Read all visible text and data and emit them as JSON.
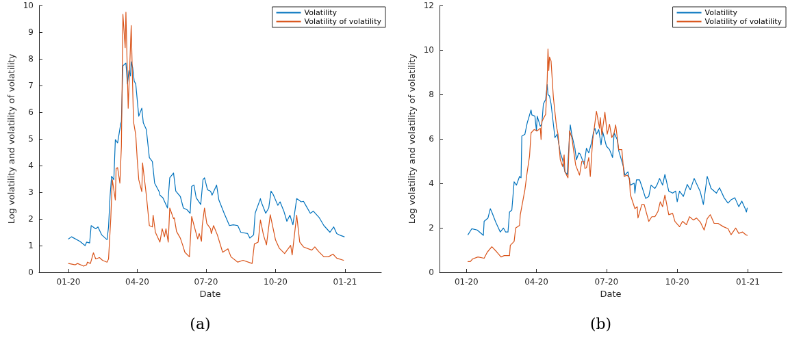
{
  "chart_data": [
    {
      "type": "line",
      "title": "(a)",
      "xlabel": "Date",
      "ylabel": "Log volatility and volatility of volatility",
      "xlim": [
        "2019-11-23",
        "2021-02-18"
      ],
      "ylim": [
        0,
        10
      ],
      "yticks": [
        0,
        1,
        2,
        3,
        4,
        5,
        6,
        7,
        8,
        9,
        10
      ],
      "xticks": [
        {
          "value": "2020-01-01",
          "label": "01-20"
        },
        {
          "value": "2020-04-01",
          "label": "04-20"
        },
        {
          "value": "2020-07-01",
          "label": "07-20"
        },
        {
          "value": "2020-10-01",
          "label": "10-20"
        },
        {
          "value": "2021-01-01",
          "label": "01-21"
        }
      ],
      "grid": false,
      "legend": "top right",
      "marker": "none",
      "line_style": "solid",
      "series": [
        {
          "name": "Volatility",
          "color": "#0072bd",
          "x": [
            "2020-01-01",
            "2020-01-05",
            "2020-01-16",
            "2020-01-23",
            "2020-01-25",
            "2020-01-29",
            "2020-01-31",
            "2020-02-06",
            "2020-02-09",
            "2020-02-14",
            "2020-02-21",
            "2020-02-23",
            "2020-02-25",
            "2020-02-27",
            "2020-03-01",
            "2020-03-03",
            "2020-03-06",
            "2020-03-10",
            "2020-03-11",
            "2020-03-13",
            "2020-03-17",
            "2020-03-19",
            "2020-03-21",
            "2020-03-23",
            "2020-03-24",
            "2020-03-26",
            "2020-03-28",
            "2020-03-30",
            "2020-04-03",
            "2020-04-07",
            "2020-04-09",
            "2020-04-13",
            "2020-04-17",
            "2020-04-21",
            "2020-04-24",
            "2020-04-30",
            "2020-05-01",
            "2020-05-05",
            "2020-05-07",
            "2020-05-11",
            "2020-05-14",
            "2020-05-19",
            "2020-05-22",
            "2020-05-28",
            "2020-06-01",
            "2020-06-06",
            "2020-06-10",
            "2020-06-12",
            "2020-06-15",
            "2020-06-18",
            "2020-06-24",
            "2020-06-27",
            "2020-06-29",
            "2020-07-03",
            "2020-07-07",
            "2020-07-09",
            "2020-07-15",
            "2020-07-18",
            "2020-07-25",
            "2020-08-01",
            "2020-08-06",
            "2020-08-12",
            "2020-08-16",
            "2020-08-25",
            "2020-08-28",
            "2020-09-02",
            "2020-09-04",
            "2020-09-11",
            "2020-09-12",
            "2020-09-18",
            "2020-09-22",
            "2020-09-25",
            "2020-09-28",
            "2020-10-04",
            "2020-10-07",
            "2020-10-12",
            "2020-10-16",
            "2020-10-20",
            "2020-10-24",
            "2020-10-29",
            "2020-11-04",
            "2020-11-07",
            "2020-11-10",
            "2020-11-16",
            "2020-11-20",
            "2020-11-28",
            "2020-12-04",
            "2020-12-12",
            "2020-12-17",
            "2020-12-21",
            "2020-12-26",
            "2020-12-31"
          ],
          "values": [
            1.25,
            1.33,
            1.16,
            1.0,
            1.13,
            1.1,
            1.75,
            1.63,
            1.7,
            1.4,
            1.22,
            1.7,
            2.84,
            3.6,
            3.47,
            4.97,
            4.85,
            5.55,
            5.65,
            7.74,
            7.84,
            7.06,
            7.56,
            7.36,
            7.89,
            7.66,
            7.16,
            7.06,
            5.85,
            6.15,
            5.6,
            5.35,
            4.3,
            4.15,
            3.34,
            3.02,
            2.89,
            2.79,
            2.66,
            2.41,
            3.54,
            3.72,
            3.04,
            2.84,
            2.41,
            2.34,
            2.21,
            3.22,
            3.27,
            2.79,
            2.54,
            3.47,
            3.54,
            3.09,
            3.04,
            2.89,
            3.27,
            2.71,
            2.21,
            1.75,
            1.78,
            1.75,
            1.5,
            1.45,
            1.28,
            1.4,
            2.21,
            2.76,
            2.64,
            2.21,
            2.41,
            3.04,
            2.91,
            2.51,
            2.64,
            2.29,
            1.91,
            2.14,
            1.78,
            2.76,
            2.64,
            2.66,
            2.51,
            2.21,
            2.29,
            2.04,
            1.75,
            1.5,
            1.7,
            1.45,
            1.38,
            1.33
          ]
        },
        {
          "name": "Volatility of volatility",
          "color": "#d95319",
          "x": [
            "2020-01-01",
            "2020-01-10",
            "2020-01-13",
            "2020-01-21",
            "2020-01-25",
            "2020-01-26",
            "2020-01-30",
            "2020-02-03",
            "2020-02-06",
            "2020-02-11",
            "2020-02-15",
            "2020-02-21",
            "2020-02-23",
            "2020-02-26",
            "2020-02-28",
            "2020-03-03",
            "2020-03-04",
            "2020-03-06",
            "2020-03-09",
            "2020-03-11",
            "2020-03-12",
            "2020-03-13",
            "2020-03-16",
            "2020-03-17",
            "2020-03-20",
            "2020-03-24",
            "2020-03-27",
            "2020-03-30",
            "2020-04-01",
            "2020-04-03",
            "2020-04-07",
            "2020-04-08",
            "2020-04-13",
            "2020-04-17",
            "2020-04-21",
            "2020-04-22",
            "2020-04-25",
            "2020-05-01",
            "2020-05-04",
            "2020-05-07",
            "2020-05-09",
            "2020-05-12",
            "2020-05-14",
            "2020-05-19",
            "2020-05-20",
            "2020-05-23",
            "2020-05-28",
            "2020-05-31",
            "2020-06-03",
            "2020-06-09",
            "2020-06-12",
            "2020-06-18",
            "2020-06-20",
            "2020-06-22",
            "2020-06-25",
            "2020-06-26",
            "2020-06-29",
            "2020-07-02",
            "2020-07-07",
            "2020-07-08",
            "2020-07-11",
            "2020-07-16",
            "2020-07-23",
            "2020-07-30",
            "2020-08-03",
            "2020-08-12",
            "2020-08-19",
            "2020-08-31",
            "2020-09-03",
            "2020-09-08",
            "2020-09-11",
            "2020-09-15",
            "2020-09-19",
            "2020-09-24",
            "2020-10-01",
            "2020-10-06",
            "2020-10-13",
            "2020-10-21",
            "2020-10-23",
            "2020-10-29",
            "2020-11-02",
            "2020-11-07",
            "2020-11-18",
            "2020-11-22",
            "2020-11-27",
            "2020-12-04",
            "2020-12-10",
            "2020-12-16",
            "2020-12-21",
            "2020-12-30"
          ],
          "values": [
            0.33,
            0.28,
            0.33,
            0.23,
            0.28,
            0.38,
            0.33,
            0.73,
            0.5,
            0.55,
            0.45,
            0.38,
            0.5,
            2.04,
            3.47,
            2.71,
            3.89,
            3.92,
            3.34,
            4.72,
            7.06,
            9.67,
            8.42,
            9.75,
            6.15,
            9.25,
            5.65,
            5.15,
            4.22,
            3.47,
            3.02,
            4.1,
            2.89,
            1.75,
            1.7,
            2.14,
            1.5,
            1.13,
            1.63,
            1.33,
            1.63,
            1.13,
            2.41,
            2.01,
            2.04,
            1.53,
            1.28,
            1.03,
            0.75,
            0.58,
            2.09,
            1.45,
            1.25,
            1.45,
            1.16,
            1.75,
            2.41,
            1.83,
            1.63,
            1.45,
            1.75,
            1.4,
            0.75,
            0.88,
            0.58,
            0.38,
            0.45,
            0.33,
            1.06,
            1.13,
            1.96,
            1.4,
            1.03,
            2.16,
            1.21,
            0.9,
            0.7,
            1.01,
            0.65,
            2.14,
            1.13,
            0.95,
            0.83,
            0.95,
            0.78,
            0.58,
            0.58,
            0.68,
            0.53,
            0.45
          ]
        }
      ]
    },
    {
      "type": "line",
      "title": "(b)",
      "xlabel": "Date",
      "ylabel": "Log volatility and volatility of volatility",
      "xlim": [
        "2019-11-27",
        "2021-02-14"
      ],
      "ylim": [
        0,
        12
      ],
      "yticks": [
        0,
        2,
        4,
        6,
        8,
        10,
        12
      ],
      "xticks": [
        {
          "value": "2020-01-01",
          "label": "01-20"
        },
        {
          "value": "2020-04-01",
          "label": "04-20"
        },
        {
          "value": "2020-07-01",
          "label": "07-20"
        },
        {
          "value": "2020-10-01",
          "label": "10-20"
        },
        {
          "value": "2021-01-01",
          "label": "01-21"
        }
      ],
      "grid": false,
      "legend": "top right",
      "marker": "none",
      "line_style": "solid",
      "series": [
        {
          "name": "Volatility",
          "color": "#0072bd",
          "x": [
            "2020-01-03",
            "2020-01-08",
            "2020-01-15",
            "2020-01-23",
            "2020-01-24",
            "2020-01-29",
            "2020-02-01",
            "2020-02-03",
            "2020-02-08",
            "2020-02-14",
            "2020-02-18",
            "2020-02-21",
            "2020-02-24",
            "2020-02-26",
            "2020-02-29",
            "2020-03-03",
            "2020-03-06",
            "2020-03-10",
            "2020-03-12",
            "2020-03-13",
            "2020-03-17",
            "2020-03-20",
            "2020-03-25",
            "2020-03-26",
            "2020-03-30",
            "2020-04-01",
            "2020-04-02",
            "2020-04-06",
            "2020-04-08",
            "2020-04-10",
            "2020-04-13",
            "2020-04-15",
            "2020-04-16",
            "2020-04-18",
            "2020-04-20",
            "2020-04-25",
            "2020-04-28",
            "2020-05-02",
            "2020-05-05",
            "2020-05-08",
            "2020-05-11",
            "2020-05-15",
            "2020-05-17",
            "2020-05-21",
            "2020-05-23",
            "2020-05-26",
            "2020-05-28",
            "2020-06-02",
            "2020-06-05",
            "2020-06-08",
            "2020-06-12",
            "2020-06-14",
            "2020-06-16",
            "2020-06-18",
            "2020-06-21",
            "2020-06-24",
            "2020-06-26",
            "2020-07-01",
            "2020-07-05",
            "2020-07-09",
            "2020-07-11",
            "2020-07-15",
            "2020-07-17",
            "2020-07-23",
            "2020-07-25",
            "2020-07-29",
            "2020-08-01",
            "2020-08-06",
            "2020-08-07",
            "2020-08-09",
            "2020-08-13",
            "2020-08-16",
            "2020-08-21",
            "2020-08-25",
            "2020-08-28",
            "2020-09-02",
            "2020-09-05",
            "2020-09-08",
            "2020-09-12",
            "2020-09-15",
            "2020-09-20",
            "2020-09-25",
            "2020-09-29",
            "2020-10-01",
            "2020-10-04",
            "2020-10-09",
            "2020-10-14",
            "2020-10-18",
            "2020-10-23",
            "2020-10-31",
            "2020-11-04",
            "2020-11-09",
            "2020-11-14",
            "2020-11-21",
            "2020-11-25",
            "2020-12-01",
            "2020-12-06",
            "2020-12-10",
            "2020-12-15",
            "2020-12-20",
            "2020-12-24",
            "2020-12-28",
            "2020-12-30",
            "2020-12-31"
          ],
          "values": [
            1.69,
            1.96,
            1.9,
            1.66,
            2.29,
            2.44,
            2.86,
            2.71,
            2.26,
            1.81,
            1.99,
            1.81,
            1.81,
            2.71,
            2.8,
            4.07,
            3.92,
            4.31,
            4.25,
            6.12,
            6.21,
            6.72,
            7.3,
            7.08,
            7.02,
            6.36,
            7.02,
            6.57,
            6.66,
            7.57,
            7.78,
            8.44,
            7.99,
            7.93,
            7.57,
            6.06,
            6.21,
            5.37,
            5.06,
            4.52,
            4.4,
            6.63,
            6.18,
            5.58,
            5.06,
            5.37,
            5.31,
            4.85,
            5.58,
            5.37,
            5.88,
            6.27,
            6.48,
            6.21,
            6.42,
            5.73,
            6.33,
            5.67,
            5.52,
            5.16,
            6.27,
            5.97,
            5.46,
            4.76,
            4.37,
            4.52,
            3.92,
            4.01,
            3.56,
            4.16,
            4.16,
            3.86,
            3.32,
            3.41,
            3.92,
            3.77,
            3.95,
            4.22,
            3.92,
            4.4,
            3.65,
            3.56,
            3.65,
            3.17,
            3.65,
            3.41,
            3.95,
            3.71,
            4.22,
            3.62,
            3.05,
            4.31,
            3.77,
            3.56,
            3.8,
            3.35,
            3.11,
            3.26,
            3.35,
            2.95,
            3.2,
            2.89,
            2.71,
            2.89
          ]
        },
        {
          "name": "Volatility of volatility",
          "color": "#d95319",
          "x": [
            "2020-01-03",
            "2020-01-06",
            "2020-01-09",
            "2020-01-16",
            "2020-01-24",
            "2020-01-28",
            "2020-02-03",
            "2020-02-09",
            "2020-02-15",
            "2020-02-19",
            "2020-02-22",
            "2020-02-26",
            "2020-02-27",
            "2020-03-03",
            "2020-03-05",
            "2020-03-10",
            "2020-03-11",
            "2020-03-17",
            "2020-03-20",
            "2020-03-23",
            "2020-03-25",
            "2020-03-29",
            "2020-04-02",
            "2020-04-06",
            "2020-04-07",
            "2020-04-08",
            "2020-04-13",
            "2020-04-15",
            "2020-04-16",
            "2020-04-17",
            "2020-04-18",
            "2020-04-20",
            "2020-04-23",
            "2020-04-27",
            "2020-04-29",
            "2020-05-02",
            "2020-05-05",
            "2020-05-07",
            "2020-05-08",
            "2020-05-12",
            "2020-05-14",
            "2020-05-17",
            "2020-05-22",
            "2020-05-27",
            "2020-05-30",
            "2020-06-02",
            "2020-06-03",
            "2020-06-05",
            "2020-06-08",
            "2020-06-10",
            "2020-06-13",
            "2020-06-18",
            "2020-06-22",
            "2020-06-23",
            "2020-06-25",
            "2020-06-29",
            "2020-07-02",
            "2020-07-05",
            "2020-07-08",
            "2020-07-11",
            "2020-07-13",
            "2020-07-17",
            "2020-07-21",
            "2020-07-24",
            "2020-07-28",
            "2020-07-31",
            "2020-08-01",
            "2020-08-07",
            "2020-08-10",
            "2020-08-11",
            "2020-08-16",
            "2020-08-19",
            "2020-08-25",
            "2020-08-29",
            "2020-09-02",
            "2020-09-06",
            "2020-09-09",
            "2020-09-12",
            "2020-09-15",
            "2020-09-20",
            "2020-09-25",
            "2020-09-28",
            "2020-10-04",
            "2020-10-08",
            "2020-10-13",
            "2020-10-17",
            "2020-10-22",
            "2020-10-26",
            "2020-10-31",
            "2020-11-05",
            "2020-11-09",
            "2020-11-13",
            "2020-11-18",
            "2020-11-23",
            "2020-11-30",
            "2020-12-06",
            "2020-12-10",
            "2020-12-16",
            "2020-12-20",
            "2020-12-25",
            "2020-12-29",
            "2020-12-31"
          ],
          "values": [
            0.48,
            0.48,
            0.6,
            0.69,
            0.63,
            0.9,
            1.15,
            0.93,
            0.69,
            0.75,
            0.75,
            0.75,
            1.21,
            1.39,
            1.99,
            2.11,
            2.59,
            3.71,
            4.52,
            5.22,
            6.27,
            6.42,
            6.36,
            6.48,
            5.97,
            6.78,
            7.11,
            8.68,
            10.04,
            9.07,
            9.68,
            9.5,
            7.87,
            6.57,
            6.21,
            5.06,
            4.76,
            5.28,
            4.52,
            4.25,
            6.36,
            6.06,
            4.82,
            4.37,
            5.0,
            5.0,
            4.67,
            4.7,
            5.16,
            4.31,
            5.91,
            7.24,
            6.48,
            6.96,
            6.18,
            7.2,
            6.21,
            6.66,
            6.06,
            6.27,
            6.63,
            5.52,
            5.52,
            4.31,
            4.37,
            4.22,
            3.5,
            2.86,
            2.95,
            2.44,
            3.05,
            3.05,
            2.29,
            2.5,
            2.5,
            2.74,
            3.17,
            2.95,
            3.47,
            2.59,
            2.65,
            2.29,
            2.05,
            2.29,
            2.14,
            2.5,
            2.35,
            2.44,
            2.26,
            1.9,
            2.41,
            2.59,
            2.2,
            2.2,
            2.05,
            1.96,
            1.69,
            1.99,
            1.75,
            1.81,
            1.69,
            1.66
          ]
        }
      ]
    }
  ]
}
